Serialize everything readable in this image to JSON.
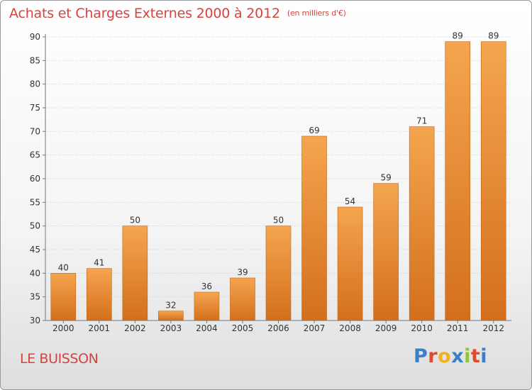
{
  "header": {
    "title": "Achats et Charges Externes 2000 à 2012",
    "unit": "(en milliers d'€)"
  },
  "location": "LE BUISSON",
  "brand": {
    "name": "Proxiti",
    "letter_colors": [
      "#3a7fc8",
      "#e2492b",
      "#f3b21b",
      "#3a7fc8",
      "#8cc63f",
      "#e2492b",
      "#3a7fc8"
    ]
  },
  "colors": {
    "bar_light": "#f5a54f",
    "bar_dark": "#d36f1c",
    "text_accent": "#d5433f"
  },
  "chart_data": {
    "type": "bar",
    "title": "Achats et Charges Externes 2000 à 2012",
    "xlabel": "",
    "ylabel": "",
    "categories": [
      "2000",
      "2001",
      "2002",
      "2003",
      "2004",
      "2005",
      "2006",
      "2007",
      "2008",
      "2009",
      "2010",
      "2011",
      "2012"
    ],
    "values": [
      40,
      41,
      50,
      32,
      36,
      39,
      50,
      69,
      54,
      59,
      71,
      89,
      89
    ],
    "ylim": [
      30,
      90
    ],
    "yticks": [
      30,
      35,
      40,
      45,
      50,
      55,
      60,
      65,
      70,
      75,
      80,
      85,
      90
    ],
    "grid": true
  }
}
